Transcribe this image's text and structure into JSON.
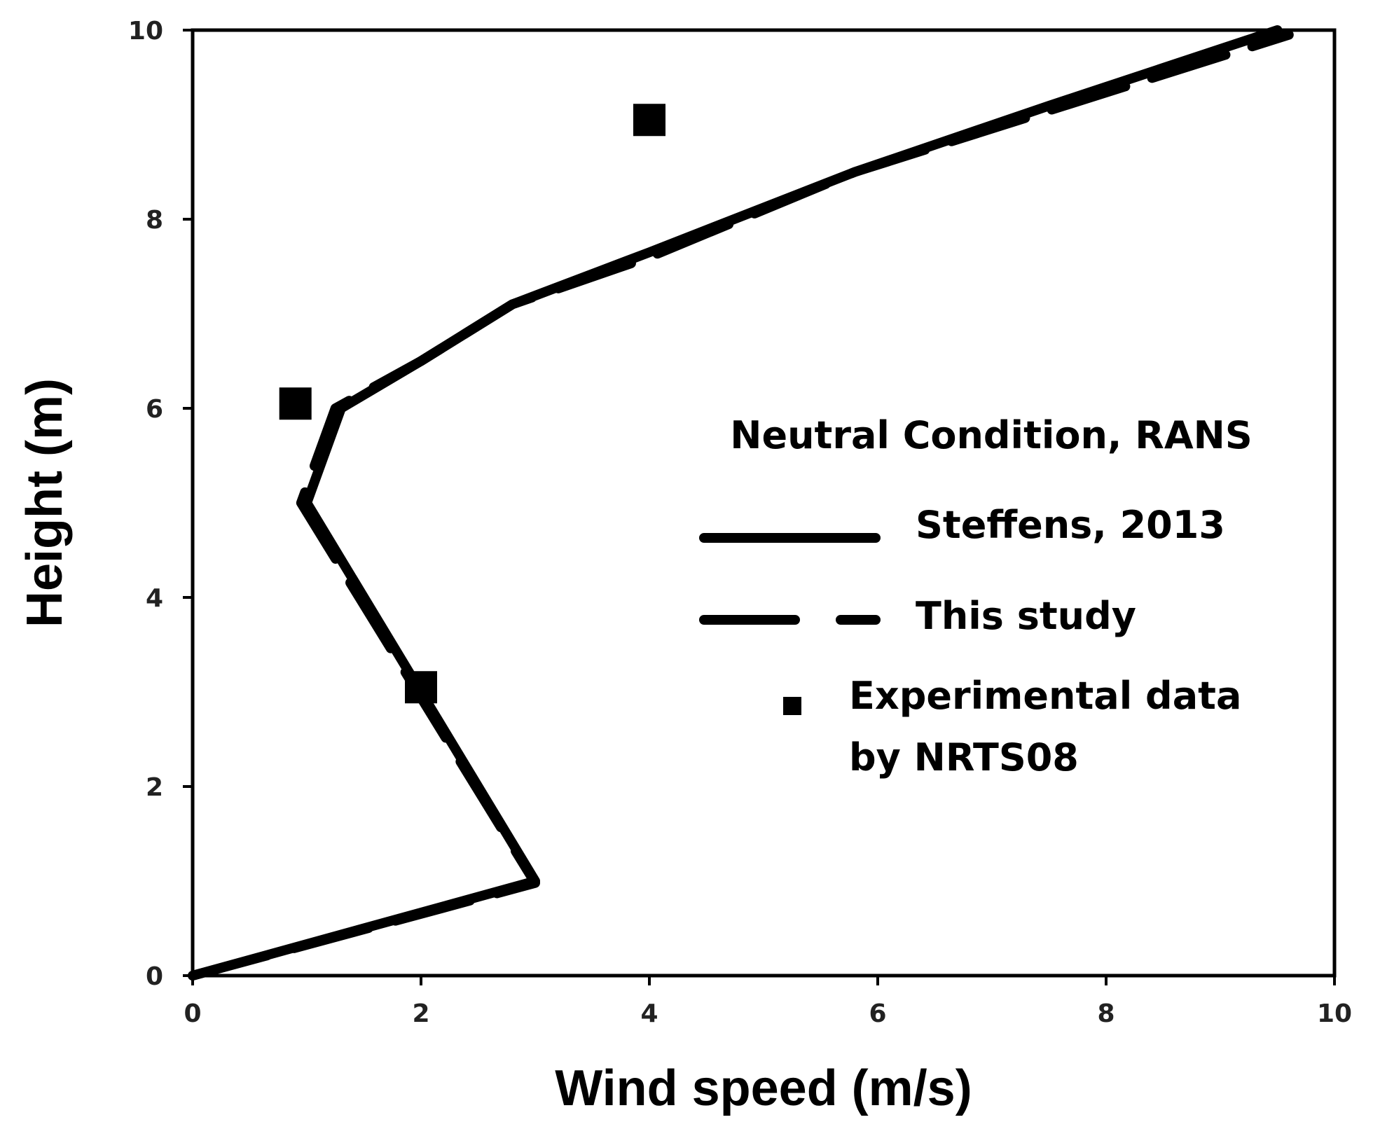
{
  "chart_data": {
    "type": "line",
    "title": "",
    "xlabel": "Wind speed (m/s)",
    "ylabel": "Height (m)",
    "xlim": [
      0,
      10
    ],
    "ylim": [
      0,
      10
    ],
    "xticks": [
      0,
      2,
      4,
      6,
      8,
      10
    ],
    "yticks": [
      0,
      2,
      4,
      6,
      8,
      10
    ],
    "grid": false,
    "legend": {
      "title": "Neutral Condition, RANS",
      "position": "center-right",
      "entries": [
        "Steffens, 2013",
        "This study",
        "Experimental data",
        "by NRTS08"
      ]
    },
    "series": [
      {
        "name": "Steffens, 2013",
        "style": "solid",
        "x": [
          0.0,
          3.0,
          1.0,
          1.3,
          2.0,
          2.8,
          4.0,
          5.8,
          7.5,
          9.5
        ],
        "y": [
          0.0,
          1.0,
          5.0,
          6.0,
          6.5,
          7.1,
          7.65,
          8.5,
          9.2,
          10.0
        ]
      },
      {
        "name": "This study",
        "style": "dashed",
        "x": [
          0.0,
          3.0,
          0.95,
          1.25,
          2.0,
          2.8,
          4.0,
          5.8,
          7.5,
          9.6
        ],
        "y": [
          0.0,
          0.98,
          5.0,
          6.0,
          6.5,
          7.1,
          7.6,
          8.5,
          9.15,
          9.95
        ]
      },
      {
        "name": "Experimental data by NRTS08",
        "style": "markers",
        "x": [
          2.0,
          0.9,
          4.0
        ],
        "y": [
          3.05,
          6.05,
          9.05
        ]
      }
    ]
  }
}
